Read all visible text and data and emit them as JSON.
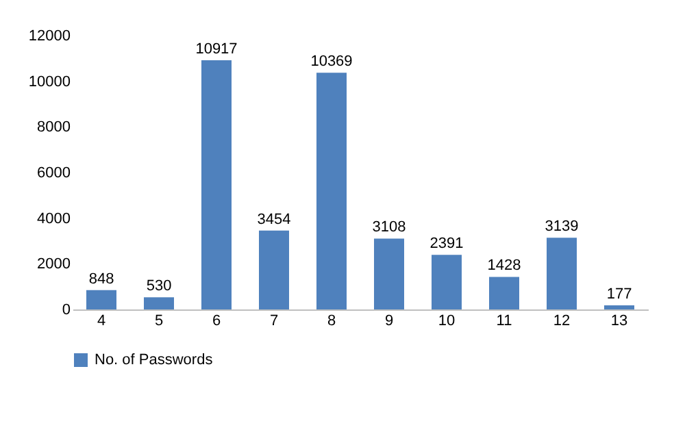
{
  "chart_data": {
    "type": "bar",
    "categories": [
      "4",
      "5",
      "6",
      "7",
      "8",
      "9",
      "10",
      "11",
      "12",
      "13"
    ],
    "series": [
      {
        "name": "No. of Passwords",
        "color": "#4f81bd",
        "values": [
          848,
          530,
          10917,
          3454,
          10369,
          3108,
          2391,
          1428,
          3139,
          177
        ]
      }
    ],
    "ylim": [
      0,
      12000
    ],
    "yticks": [
      0,
      2000,
      4000,
      6000,
      8000,
      10000,
      12000
    ],
    "grid": false,
    "legend": "bottom",
    "data_labels": true
  }
}
